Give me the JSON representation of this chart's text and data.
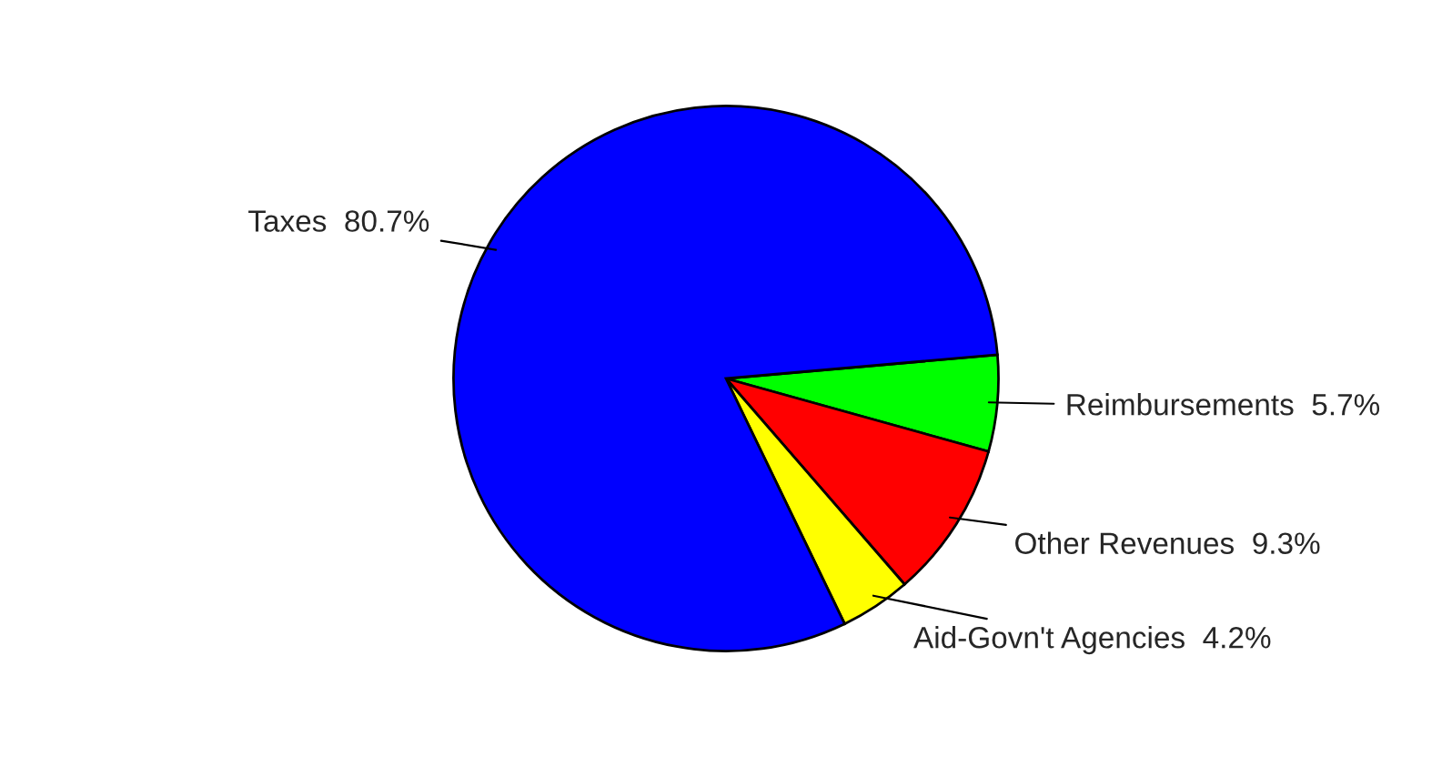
{
  "chart_data": {
    "type": "pie",
    "categories": [
      "Reimbursements",
      "Other Revenues",
      "Aid-Govn't Agencies",
      "Taxes"
    ],
    "values": [
      5.7,
      9.3,
      4.2,
      80.7
    ],
    "colors": [
      "#00ff00",
      "#ff0000",
      "#ffff00",
      "#0000ff"
    ],
    "value_labels": [
      "5.7%",
      "9.3%",
      "4.2%",
      "80.7%"
    ],
    "legend": false
  }
}
